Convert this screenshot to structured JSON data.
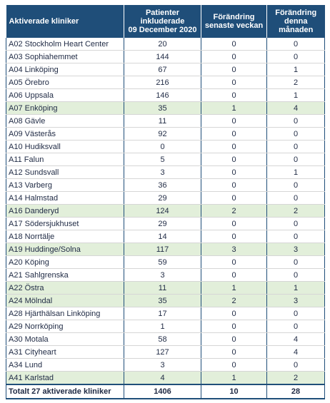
{
  "header": {
    "col1": "Aktiverade kliniker",
    "col2": [
      "Patienter",
      "inkluderade",
      "09 December 2020"
    ],
    "col3": [
      "Förändring",
      "senaste veckan"
    ],
    "col4": [
      "Förändring",
      "denna",
      "månaden"
    ]
  },
  "rows": [
    {
      "name": "A02 Stockholm Heart Center",
      "patients": "20",
      "week": "0",
      "month": "0",
      "highlight": false
    },
    {
      "name": "A03 Sophiahemmet",
      "patients": "144",
      "week": "0",
      "month": "0",
      "highlight": false
    },
    {
      "name": "A04 Linköping",
      "patients": "67",
      "week": "0",
      "month": "1",
      "highlight": false
    },
    {
      "name": "A05 Örebro",
      "patients": "216",
      "week": "0",
      "month": "2",
      "highlight": false
    },
    {
      "name": "A06 Uppsala",
      "patients": "146",
      "week": "0",
      "month": "1",
      "highlight": false
    },
    {
      "name": "A07 Enköping",
      "patients": "35",
      "week": "1",
      "month": "4",
      "highlight": true
    },
    {
      "name": "A08 Gävle",
      "patients": "11",
      "week": "0",
      "month": "0",
      "highlight": false
    },
    {
      "name": "A09 Västerås",
      "patients": "92",
      "week": "0",
      "month": "0",
      "highlight": false
    },
    {
      "name": "A10 Hudiksvall",
      "patients": "0",
      "week": "0",
      "month": "0",
      "highlight": false
    },
    {
      "name": "A11 Falun",
      "patients": "5",
      "week": "0",
      "month": "0",
      "highlight": false
    },
    {
      "name": "A12 Sundsvall",
      "patients": "3",
      "week": "0",
      "month": "1",
      "highlight": false
    },
    {
      "name": "A13 Varberg",
      "patients": "36",
      "week": "0",
      "month": "0",
      "highlight": false
    },
    {
      "name": "A14 Halmstad",
      "patients": "29",
      "week": "0",
      "month": "0",
      "highlight": false
    },
    {
      "name": "A16 Danderyd",
      "patients": "124",
      "week": "2",
      "month": "2",
      "highlight": true
    },
    {
      "name": "A17 Södersjukhuset",
      "patients": "29",
      "week": "0",
      "month": "0",
      "highlight": false
    },
    {
      "name": "A18 Norrtälje",
      "patients": "14",
      "week": "0",
      "month": "0",
      "highlight": false
    },
    {
      "name": "A19 Huddinge/Solna",
      "patients": "117",
      "week": "3",
      "month": "3",
      "highlight": true
    },
    {
      "name": "A20 Köping",
      "patients": "59",
      "week": "0",
      "month": "0",
      "highlight": false
    },
    {
      "name": "A21 Sahlgrenska",
      "patients": "3",
      "week": "0",
      "month": "0",
      "highlight": false
    },
    {
      "name": "A22 Östra",
      "patients": "11",
      "week": "1",
      "month": "1",
      "highlight": true
    },
    {
      "name": "A24 Mölndal",
      "patients": "35",
      "week": "2",
      "month": "3",
      "highlight": true
    },
    {
      "name": "A28 Hjärthälsan Linköping",
      "patients": "17",
      "week": "0",
      "month": "0",
      "highlight": false
    },
    {
      "name": "A29 Norrköping",
      "patients": "1",
      "week": "0",
      "month": "0",
      "highlight": false
    },
    {
      "name": "A30 Motala",
      "patients": "58",
      "week": "0",
      "month": "4",
      "highlight": false
    },
    {
      "name": "A31 Cityheart",
      "patients": "127",
      "week": "0",
      "month": "4",
      "highlight": false
    },
    {
      "name": "A34 Lund",
      "patients": "3",
      "week": "0",
      "month": "0",
      "highlight": false
    },
    {
      "name": "A41 Karlstad",
      "patients": "4",
      "week": "1",
      "month": "2",
      "highlight": true
    }
  ],
  "total": {
    "name": "Totalt 27 aktiverade kliniker",
    "patients": "1406",
    "week": "10",
    "month": "28"
  },
  "colors": {
    "header_bg": "#1f4e79",
    "highlight_bg": "#e2efda",
    "text": "#1f2a44"
  }
}
